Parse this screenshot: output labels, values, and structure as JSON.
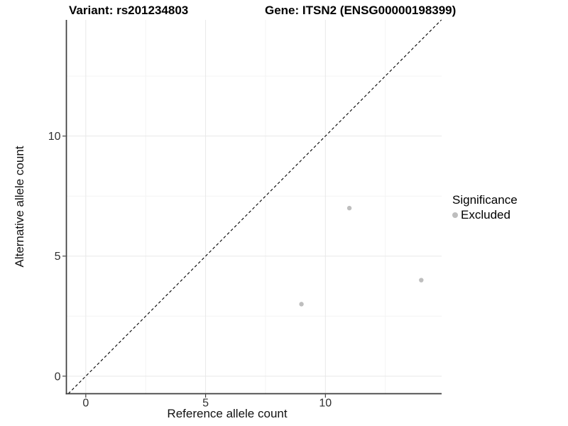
{
  "header": {
    "variant_title": "Variant: rs201234803",
    "gene_title": "Gene: ITSN2 (ENSG00000198399)"
  },
  "legend": {
    "title": "Significance",
    "items": [
      {
        "label": "Excluded",
        "color": "#bebebe"
      }
    ]
  },
  "colors": {
    "background": "#ffffff",
    "grid_major": "#e8e8e8",
    "grid_minor": "#f4f4f4",
    "axis_line": "#3c3c3c",
    "tick_mark": "#333333",
    "tick_label": "#303030",
    "identity_line": "#000000",
    "point": "#bebebe"
  },
  "chart_data": {
    "type": "scatter",
    "title_left": "Variant: rs201234803",
    "title_right": "Gene: ITSN2 (ENSG00000198399)",
    "xlabel": "Reference allele count",
    "ylabel": "Alternative allele count",
    "xlim": [
      -0.81,
      14.85
    ],
    "ylim": [
      -0.73,
      14.84
    ],
    "x_major_ticks": [
      0,
      5,
      10
    ],
    "y_major_ticks": [
      0,
      5,
      10
    ],
    "x_minor_gridlines": [
      2.5,
      7.5,
      12.5
    ],
    "y_minor_gridlines": [
      2.5,
      7.5,
      12.5
    ],
    "grid": true,
    "legend_position": "right-middle",
    "identity_line": {
      "slope": 1,
      "intercept": 0,
      "style": "dashed",
      "color": "#000000"
    },
    "series": [
      {
        "name": "Excluded",
        "color": "#bebebe",
        "marker_radius": 3.2,
        "points": [
          {
            "x": 9,
            "y": 3
          },
          {
            "x": 11,
            "y": 7
          },
          {
            "x": 14,
            "y": 4
          }
        ]
      }
    ]
  }
}
